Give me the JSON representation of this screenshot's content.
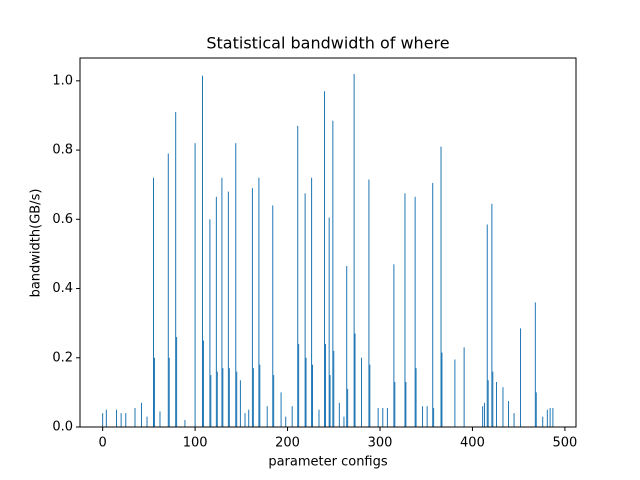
{
  "chart_data": {
    "type": "bar",
    "title": "Statistical bandwidth of where",
    "xlabel": "parameter configs",
    "ylabel": "bandwidth(GB/s)",
    "color": "#1f77b4",
    "x": [
      0,
      4,
      15,
      20,
      25,
      35,
      42,
      48,
      55,
      56,
      62,
      71,
      72,
      79,
      80,
      89,
      100,
      108,
      109,
      116,
      117,
      123,
      124,
      129,
      130,
      136,
      137,
      144,
      145,
      149,
      154,
      158,
      162,
      163,
      169,
      170,
      178,
      184,
      185,
      193,
      198,
      205,
      211,
      212,
      219,
      220,
      226,
      227,
      234,
      240,
      241,
      245,
      246,
      249,
      250,
      256,
      261,
      264,
      265,
      272,
      273,
      280,
      288,
      289,
      298,
      303,
      308,
      315,
      316,
      327,
      328,
      338,
      339,
      346,
      351,
      357,
      358,
      366,
      367,
      381,
      391,
      411,
      413,
      416,
      417,
      421,
      422,
      426,
      433,
      439,
      445,
      452,
      468,
      469,
      476,
      481,
      484,
      487
    ],
    "values": [
      0.04,
      0.05,
      0.05,
      0.04,
      0.04,
      0.055,
      0.07,
      0.03,
      0.72,
      0.2,
      0.045,
      0.79,
      0.2,
      0.91,
      0.26,
      0.02,
      0.82,
      1.015,
      0.25,
      0.6,
      0.15,
      0.665,
      0.16,
      0.72,
      0.17,
      0.68,
      0.17,
      0.82,
      0.16,
      0.135,
      0.04,
      0.05,
      0.69,
      0.17,
      0.72,
      0.18,
      0.06,
      0.64,
      0.15,
      0.1,
      0.03,
      0.06,
      0.87,
      0.24,
      0.675,
      0.2,
      0.72,
      0.18,
      0.05,
      0.97,
      0.24,
      0.605,
      0.15,
      0.885,
      0.22,
      0.07,
      0.03,
      0.465,
      0.11,
      1.02,
      0.27,
      0.2,
      0.715,
      0.18,
      0.055,
      0.055,
      0.055,
      0.47,
      0.13,
      0.675,
      0.13,
      0.665,
      0.17,
      0.06,
      0.06,
      0.705,
      0.055,
      0.81,
      0.215,
      0.195,
      0.23,
      0.06,
      0.07,
      0.585,
      0.135,
      0.645,
      0.16,
      0.13,
      0.115,
      0.075,
      0.04,
      0.285,
      0.36,
      0.1,
      0.03,
      0.05,
      0.055,
      0.055
    ],
    "xlim": [
      -24.5,
      512
    ],
    "ylim": [
      0,
      1.066
    ],
    "xticks": [
      0,
      100,
      200,
      300,
      400,
      500
    ],
    "yticks": [
      {
        "value": 0,
        "label": "0.0"
      },
      0.2,
      0.4,
      0.6,
      0.8,
      {
        "value": 1,
        "label": "1.0"
      }
    ]
  }
}
